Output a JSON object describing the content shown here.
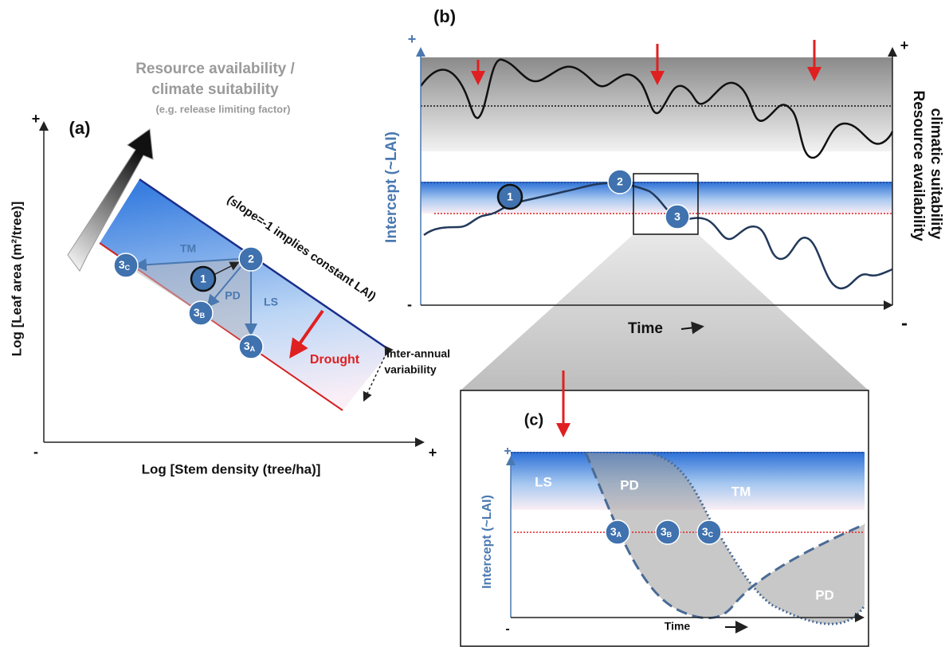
{
  "panel_a": {
    "tag": "(a)",
    "resource_label": [
      "Resource availability /",
      "climate suitability"
    ],
    "resource_note": "(e.g. release limiting factor)",
    "y_axis_label": "Log [Leaf area (m²/tree)]",
    "x_axis_label": "Log [Stem density (tree/ha)]",
    "y_plus": "+",
    "x_minus": "-",
    "x_plus": "+",
    "slope_note": "(slope=-1 implies constant LAI)",
    "drought": "Drought",
    "variability": [
      "Inter-annual",
      "variability"
    ],
    "arrow_labels": {
      "tm": "TM",
      "pd": "PD",
      "ls": "LS"
    },
    "nodes": [
      {
        "label": "1"
      },
      {
        "label": "2"
      },
      {
        "label": "3",
        "sub": "C"
      },
      {
        "label": "3",
        "sub": "B"
      },
      {
        "label": "3",
        "sub": "A"
      }
    ]
  },
  "panel_b": {
    "tag": "(b)",
    "y_axis_label": "Intercept (~LAI)",
    "right_axis_label": [
      "Resource availability",
      "climatic suitability"
    ],
    "x_axis_label": "Time",
    "left_plus": "+",
    "left_minus": "-",
    "right_plus": "+",
    "right_minus": "-",
    "nodes": [
      {
        "label": "1"
      },
      {
        "label": "2"
      },
      {
        "label": "3"
      }
    ]
  },
  "panel_c": {
    "tag": "(c)",
    "y_axis_label": "Intercept (~LAI)",
    "x_axis_label": "Time",
    "plus": "+",
    "minus": "-",
    "regions": {
      "ls": "LS",
      "pd": "PD",
      "tm": "TM",
      "pd2": "PD"
    },
    "nodes": [
      {
        "label": "3",
        "sub": "A"
      },
      {
        "label": "3",
        "sub": "B"
      },
      {
        "label": "3",
        "sub": "C"
      }
    ]
  }
}
